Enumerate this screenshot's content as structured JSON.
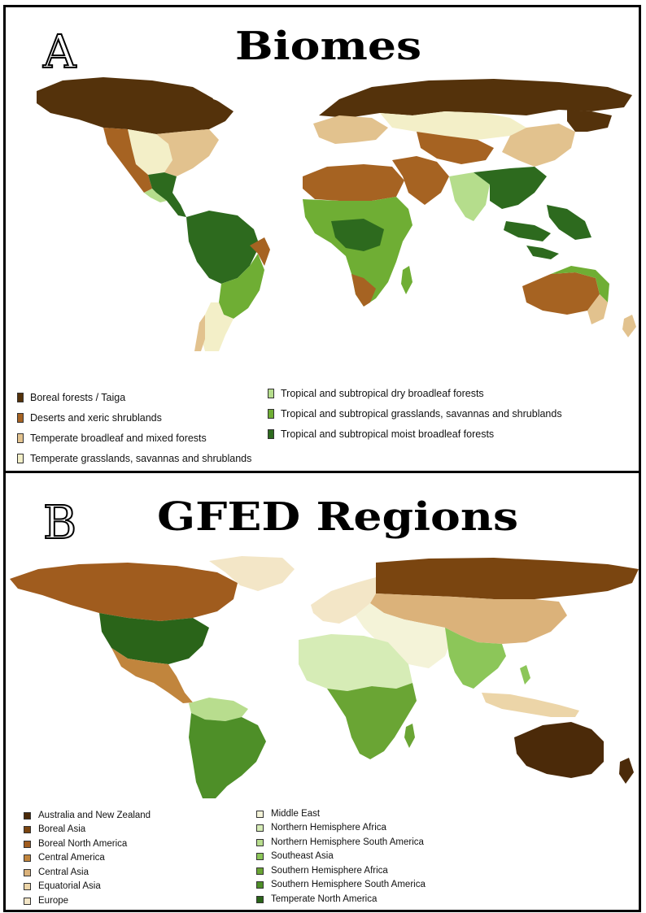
{
  "panel_a": {
    "letter": "A",
    "title": "Biomes",
    "legend": [
      {
        "label": "Boreal forests / Taiga",
        "color": "#54320b"
      },
      {
        "label": "Deserts and xeric shrublands",
        "color": "#a66322"
      },
      {
        "label": "Temperate broadleaf and mixed forests",
        "color": "#e2c28e"
      },
      {
        "label": "Temperate grasslands, savannas and shrublands",
        "color": "#f3efc8"
      },
      {
        "label": "Tropical and subtropical dry broadleaf forests",
        "color": "#b5dd8c"
      },
      {
        "label": "Tropical and subtropical grasslands, savannas and shrublands",
        "color": "#6fae34"
      },
      {
        "label": "Tropical and subtropical moist broadleaf forests",
        "color": "#2d6a1e"
      }
    ]
  },
  "panel_b": {
    "letter": "B",
    "title": "GFED Regions",
    "legend": [
      {
        "label": "Australia and New Zealand",
        "color": "#4b2a09"
      },
      {
        "label": "Boreal Asia",
        "color": "#7a4510"
      },
      {
        "label": "Boreal North America",
        "color": "#a05c1e"
      },
      {
        "label": "Central America",
        "color": "#c1853d"
      },
      {
        "label": "Central Asia",
        "color": "#dbb27a"
      },
      {
        "label": "Equatorial Asia",
        "color": "#ecd5a8"
      },
      {
        "label": "Europe",
        "color": "#f3e6c7"
      },
      {
        "label": "Middle East",
        "color": "#f4f3d8"
      },
      {
        "label": "Northern Hemisphere Africa",
        "color": "#d6ecb6"
      },
      {
        "label": "Northern Hemisphere South America",
        "color": "#b8dd8e"
      },
      {
        "label": "Southeast Asia",
        "color": "#8cc659"
      },
      {
        "label": "Southern Hemisphere Africa",
        "color": "#6aa534"
      },
      {
        "label": "Southern Hemisphere South America",
        "color": "#4e8f28"
      },
      {
        "label": "Temperate North America",
        "color": "#2a6419"
      }
    ]
  }
}
